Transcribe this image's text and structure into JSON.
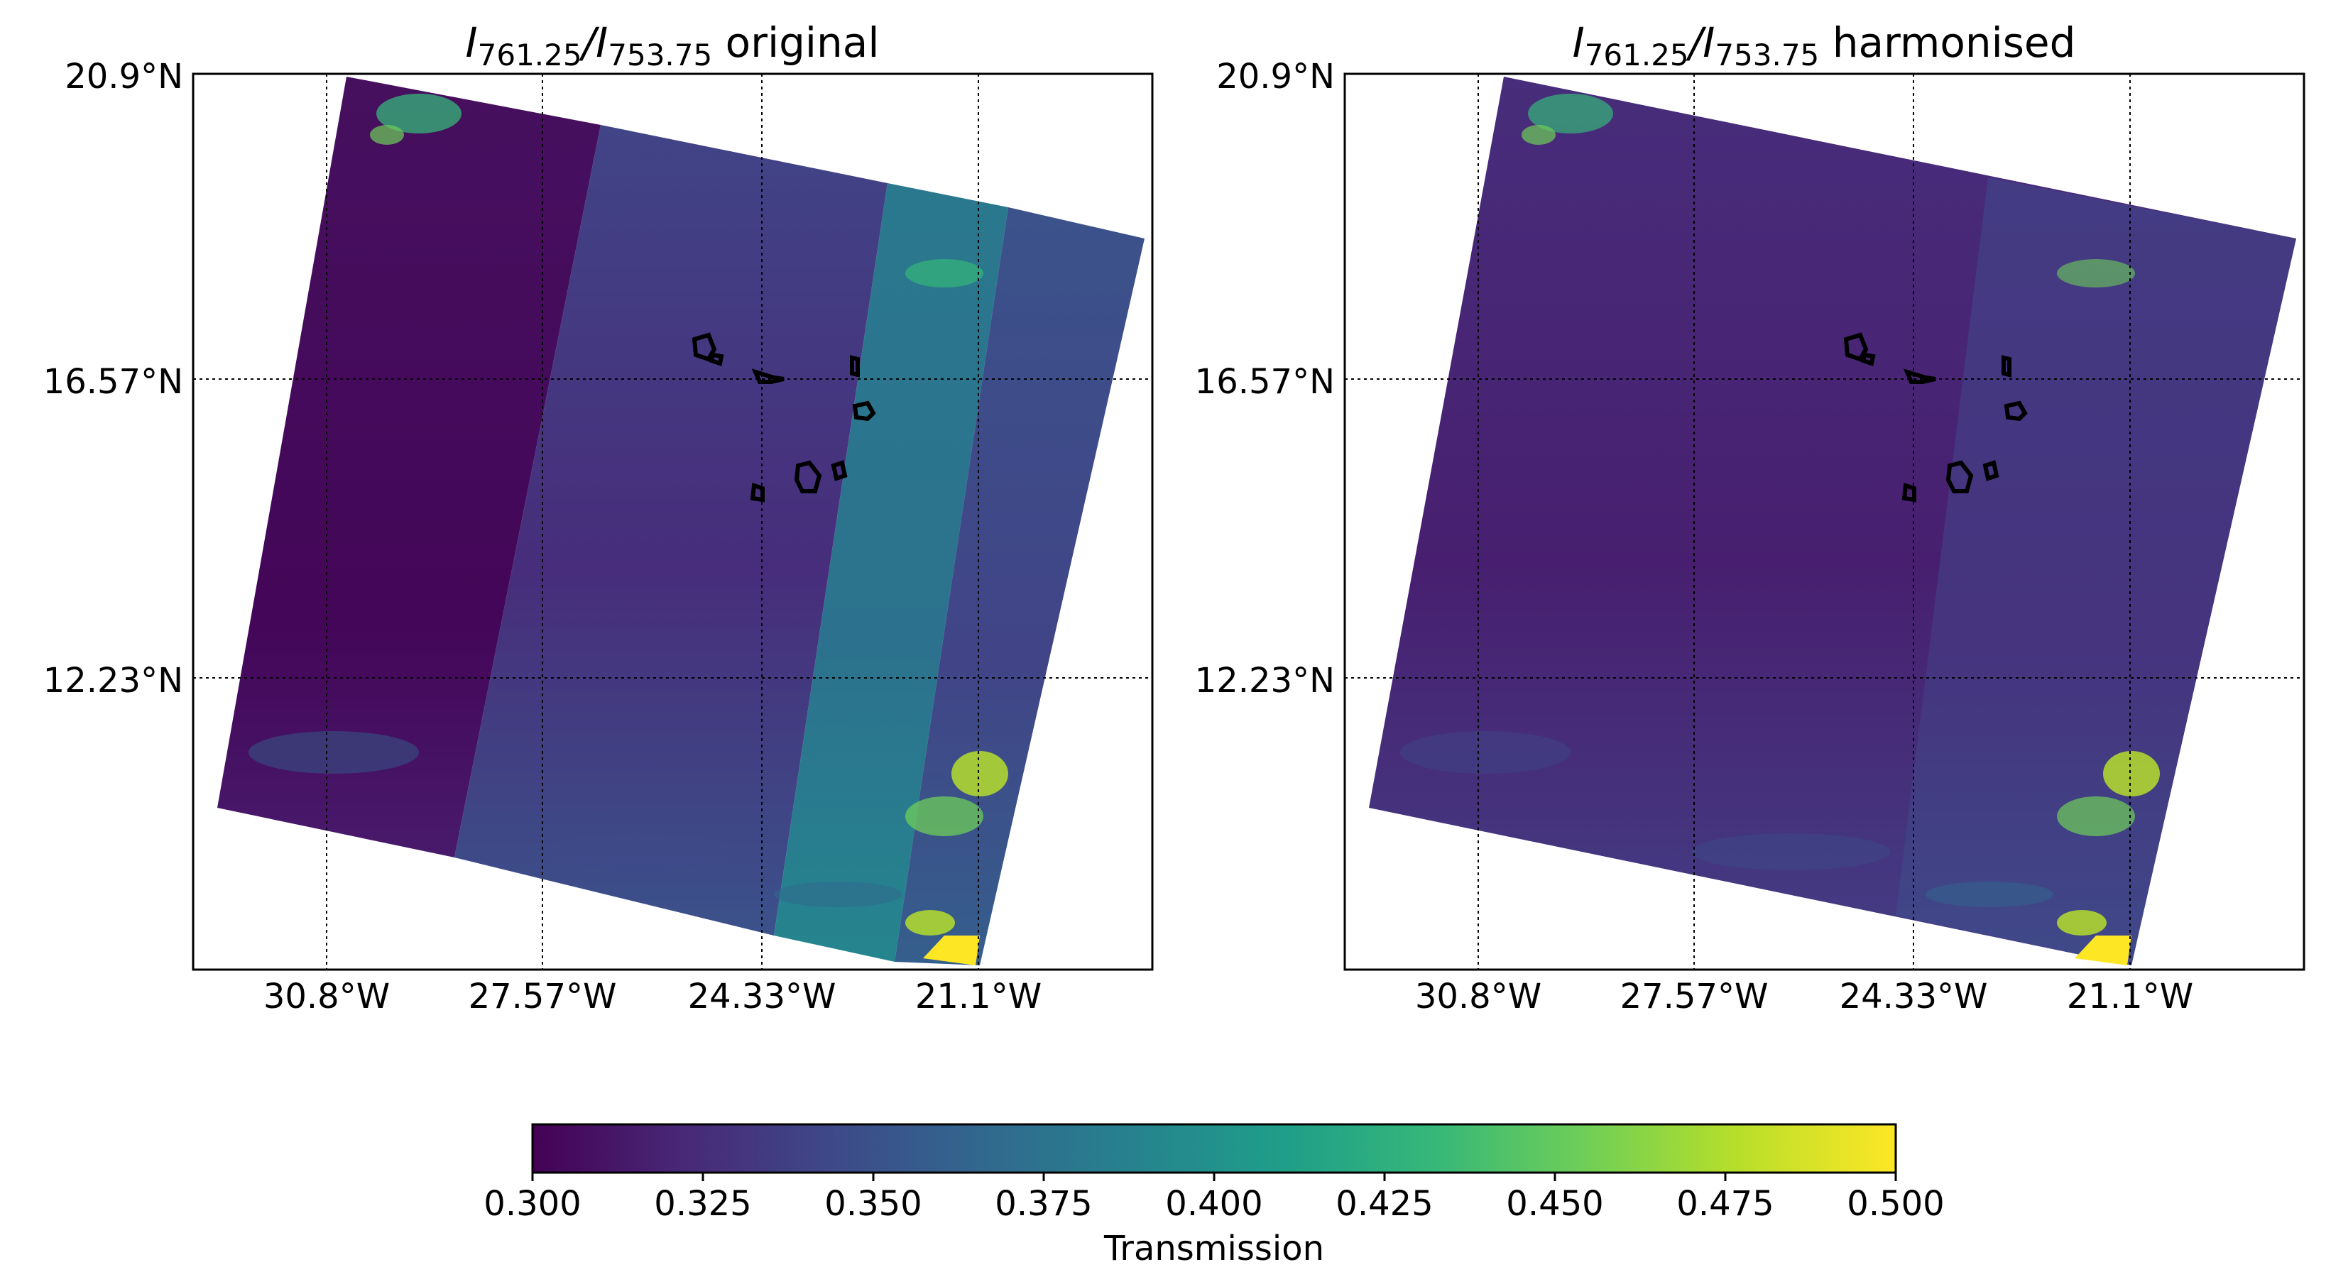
{
  "chart_data": {
    "type": "heatmap",
    "panels": [
      {
        "id": "original",
        "title_var1": "I",
        "title_sub1": "761.25",
        "title_slash": "/",
        "title_var2": "I",
        "title_sub2": "753.75",
        "title_suffix": " original",
        "x_ticks": [
          "30.8°W",
          "27.57°W",
          "24.33°W",
          "21.1°W"
        ],
        "y_ticks": [
          "20.9°N",
          "16.57°N",
          "12.23°N"
        ]
      },
      {
        "id": "harmonised",
        "title_var1": "I",
        "title_sub1": "761.25",
        "title_slash": "/",
        "title_var2": "I",
        "title_sub2": "753.75",
        "title_suffix": " harmonised",
        "x_ticks": [
          "30.8°W",
          "27.57°W",
          "24.33°W",
          "21.1°W"
        ],
        "y_ticks": [
          "20.9°N",
          "16.57°N",
          "12.23°N"
        ]
      }
    ],
    "colorbar": {
      "label": "Transmission",
      "range": [
        0.3,
        0.5
      ],
      "colormap": "viridis",
      "ticks": [
        "0.300",
        "0.325",
        "0.350",
        "0.375",
        "0.400",
        "0.425",
        "0.450",
        "0.475",
        "0.500"
      ]
    },
    "grid": "dotted"
  },
  "colors": {
    "viridis": [
      "#440154",
      "#482878",
      "#3e4989",
      "#31688e",
      "#26828e",
      "#1f9e89",
      "#35b779",
      "#6ece58",
      "#b5de2b",
      "#fde725"
    ],
    "island_outline": "#000000",
    "grid": "#000000"
  }
}
